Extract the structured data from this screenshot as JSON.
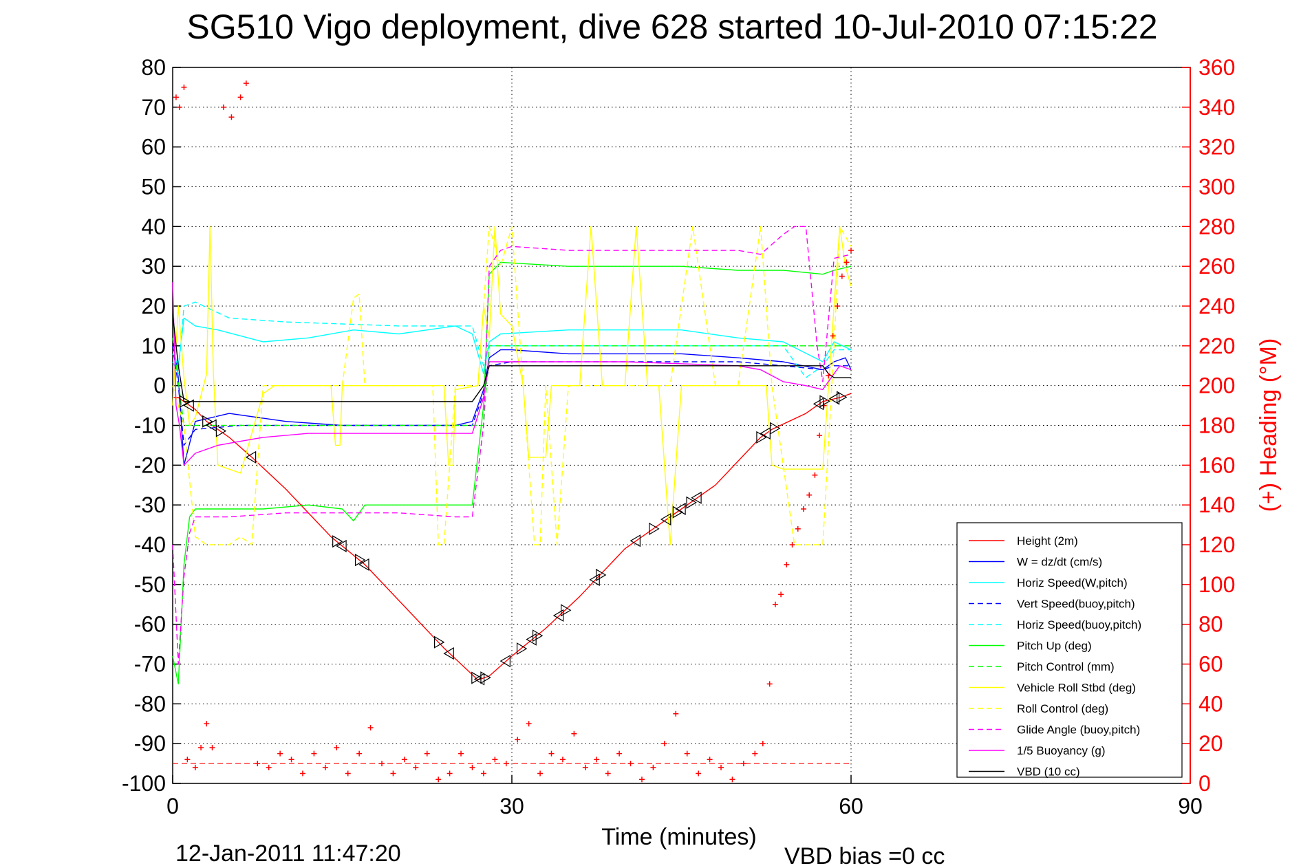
{
  "title": "SG510 Vigo deployment, dive 628 started 10-Jul-2010 07:15:22",
  "footer": {
    "timestamp": "12-Jan-2011 11:47:20",
    "vbd_bias": "VBD bias =0 cc"
  },
  "chart_data": {
    "type": "line",
    "title": "SG510 Vigo deployment, dive 628 started 10-Jul-2010 07:15:22",
    "xlabel": "Time (minutes)",
    "ylabel": "",
    "y2label": "(+) Heading (°M)",
    "xlim": [
      0,
      90
    ],
    "ylim": [
      -100,
      80
    ],
    "y2lim": [
      0,
      360
    ],
    "xticks": [
      0,
      30,
      60,
      90
    ],
    "yticks": [
      80,
      70,
      60,
      50,
      40,
      30,
      20,
      10,
      0,
      -10,
      -20,
      -30,
      -40,
      -50,
      -60,
      -70,
      -80,
      -90,
      -100
    ],
    "y2ticks": [
      360,
      340,
      320,
      300,
      280,
      260,
      240,
      220,
      200,
      180,
      160,
      140,
      120,
      100,
      80,
      60,
      40,
      20,
      0
    ],
    "grid": "dotted at x ticks",
    "legend_position": "bottom-right",
    "colors": {
      "height": "#ff0000",
      "w": "#0000ff",
      "horiz_w": "#00ffff",
      "vert_buoy": "#0000ff",
      "horiz_buoy": "#00ffff",
      "pitch": "#00ff00",
      "pitch_control": "#00ff00",
      "roll": "#ffff00",
      "roll_control": "#ffff00",
      "glide": "#ff00ff",
      "buoyancy": "#ff00ff",
      "vbd": "#000000",
      "heading": "#ff0000"
    },
    "series": [
      {
        "name": "Height (2m)",
        "style": "solid",
        "color": "#ff0000",
        "x": [
          0,
          0.5,
          1,
          1.5,
          2,
          3,
          4,
          5,
          7,
          10,
          14,
          17,
          20,
          24,
          27,
          28,
          30,
          33,
          36,
          40,
          44,
          48,
          52,
          53,
          56,
          57.5,
          59,
          60
        ],
        "y": [
          -3,
          -3,
          -4,
          -5,
          -6,
          -9,
          -11,
          -13,
          -18,
          -26,
          -38,
          -45,
          -54,
          -66,
          -74,
          -73,
          -68,
          -61,
          -53,
          -41,
          -33,
          -25,
          -13,
          -11,
          -7,
          -4,
          -3,
          -2
        ]
      },
      {
        "name": "W = dz/dt (cm/s)",
        "style": "solid",
        "color": "#0000ff",
        "x": [
          0,
          0.5,
          1,
          2,
          5,
          10,
          15,
          20,
          25,
          26.5,
          27.5,
          28,
          29,
          30,
          35,
          40,
          45,
          50,
          54,
          57.5,
          58.5,
          59.5,
          60
        ],
        "y": [
          12,
          2,
          -20,
          -9,
          -7,
          -9,
          -10,
          -10,
          -10,
          -9,
          -1,
          7,
          9,
          9,
          8,
          8,
          8,
          7,
          6,
          4,
          6,
          7,
          4
        ]
      },
      {
        "name": "Horiz Speed(W,pitch)",
        "style": "solid",
        "color": "#00ffff",
        "x": [
          0,
          0.5,
          1,
          2,
          4,
          8,
          12,
          16,
          20,
          25,
          26.5,
          27.5,
          28,
          29,
          35,
          40,
          45,
          50,
          54,
          57.5,
          58.5,
          60
        ],
        "y": [
          8,
          5,
          17,
          15,
          14,
          11,
          12,
          14,
          13,
          15,
          13,
          3,
          11,
          13,
          14,
          14,
          14,
          12,
          11,
          6,
          11,
          9
        ]
      },
      {
        "name": "Vert Speed(buoy,pitch)",
        "style": "dashed",
        "color": "#0000ff",
        "x": [
          0,
          0.5,
          1,
          2,
          6,
          12,
          18,
          25,
          26.5,
          27.5,
          28,
          30,
          40,
          50,
          54,
          57.5,
          58.5,
          60
        ],
        "y": [
          10,
          0,
          -15,
          -11,
          -10,
          -10,
          -10,
          -10,
          -10,
          -2,
          5,
          6,
          6,
          6,
          5,
          4,
          5,
          5
        ]
      },
      {
        "name": "Horiz Speed(buoy,pitch)",
        "style": "dashed",
        "color": "#00ffff",
        "x": [
          0,
          0.5,
          1,
          2,
          5,
          10,
          20,
          26.5,
          27.5,
          28,
          30,
          40,
          50,
          54,
          56,
          57.5,
          58.5,
          60
        ],
        "y": [
          6,
          3,
          20,
          21,
          17,
          16,
          15,
          15,
          5,
          10,
          10,
          10,
          10,
          10,
          2,
          5,
          9,
          9
        ]
      },
      {
        "name": "Pitch Up (deg)",
        "style": "solid",
        "color": "#00ff00",
        "x": [
          0,
          0.5,
          1,
          1.5,
          2,
          5,
          8,
          12,
          15,
          16,
          17,
          20,
          25,
          26.5,
          27.5,
          28,
          29,
          35,
          40,
          45,
          50,
          54,
          57.5,
          58.5,
          60
        ],
        "y": [
          -68,
          -75,
          -45,
          -33,
          -31,
          -31,
          -31,
          -30,
          -31,
          -34,
          -30,
          -30,
          -30,
          -30,
          -5,
          28,
          31,
          30,
          30,
          30,
          29,
          29,
          28,
          29,
          30
        ]
      },
      {
        "name": "Pitch Control (mm)",
        "style": "dashed",
        "color": "#00ff00",
        "x": [
          0,
          1,
          2,
          10,
          20,
          26.5,
          27.5,
          28,
          30,
          40,
          50,
          54,
          57.5,
          58.5,
          60
        ],
        "y": [
          12,
          -10,
          -10,
          -10,
          -10,
          -10,
          -10,
          10,
          10,
          10,
          10,
          10,
          10,
          10,
          10
        ]
      },
      {
        "name": "Vehicle Roll Stbd (deg)",
        "style": "solid",
        "color": "#ffff00",
        "x": [
          0,
          0.5,
          1,
          1.5,
          2,
          3,
          3.3,
          3.6,
          4,
          6,
          8,
          9,
          14,
          14.4,
          14.8,
          15,
          24,
          24.4,
          24.8,
          25,
          27,
          27.5,
          28,
          28.5,
          29,
          30,
          31,
          31.5,
          33,
          33.5,
          34,
          35,
          36,
          37,
          38,
          40,
          41,
          42,
          43,
          44,
          45,
          46,
          48,
          50,
          52,
          52.5,
          53,
          54,
          55,
          56,
          57.5,
          58.5,
          59,
          59.5,
          60
        ],
        "y": [
          -5,
          20,
          2,
          -10,
          -8,
          3,
          40,
          3,
          -20,
          -22,
          -2,
          0,
          0,
          -15,
          -15,
          0,
          0,
          -20,
          -20,
          -1,
          0,
          20,
          12,
          40,
          18,
          15,
          0,
          -18,
          -18,
          0,
          0,
          0,
          0,
          40,
          0,
          0,
          40,
          0,
          0,
          -40,
          0,
          0,
          0,
          0,
          0,
          0,
          -20,
          -21,
          -21,
          -21,
          -21,
          20,
          40,
          30,
          25
        ]
      },
      {
        "name": "Roll Control (deg)",
        "style": "dashed",
        "color": "#ffff00",
        "x": [
          0,
          1,
          2,
          3,
          4,
          5,
          6,
          7,
          8,
          12,
          15,
          16,
          16.5,
          17,
          20,
          23,
          23.5,
          24,
          25,
          27,
          28,
          29,
          30,
          31,
          32,
          32.5,
          33,
          34,
          35,
          37,
          38,
          40,
          42,
          44,
          46,
          48,
          50,
          52,
          53,
          55,
          57,
          57.5,
          58.5,
          59,
          60
        ],
        "y": [
          0,
          -10,
          -38,
          -40,
          -40,
          -40,
          -38,
          -40,
          0,
          0,
          0,
          22,
          23,
          0,
          0,
          0,
          -40,
          -40,
          0,
          0,
          40,
          30,
          40,
          0,
          -40,
          -40,
          0,
          -40,
          0,
          0,
          0,
          0,
          0,
          0,
          40,
          0,
          0,
          40,
          0,
          -40,
          -40,
          -40,
          10,
          40,
          35
        ]
      },
      {
        "name": "Glide Angle (buoy,pitch)",
        "style": "dashed",
        "color": "#ff00ff",
        "x": [
          0,
          0.5,
          1,
          1.5,
          2,
          5,
          10,
          15,
          20,
          25,
          26.5,
          27.5,
          28,
          29,
          30,
          35,
          40,
          45,
          50,
          52,
          54,
          55,
          56,
          57,
          57.5,
          58.5,
          60
        ],
        "y": [
          -40,
          -70,
          -48,
          -37,
          -33,
          -33,
          -32,
          -32,
          -32,
          -33,
          -33,
          -10,
          30,
          34,
          35,
          34,
          34,
          34,
          34,
          33,
          38,
          40,
          40,
          10,
          1,
          32,
          33
        ]
      },
      {
        "name": "1/5 Buoyancy (g)",
        "style": "solid",
        "color": "#ff00ff",
        "x": [
          0,
          0.3,
          0.6,
          1,
          2,
          4,
          6,
          8,
          12,
          18,
          24,
          26.5,
          27.5,
          28,
          30,
          40,
          50,
          52,
          54,
          56,
          57.5,
          58.5,
          59,
          60
        ],
        "y": [
          26,
          -5,
          -10,
          -20,
          -17,
          -15,
          -14,
          -13,
          -12,
          -12,
          -12,
          -12,
          -3,
          6,
          6,
          6,
          5,
          4,
          1,
          0,
          -1,
          3,
          5,
          4
        ]
      },
      {
        "name": "VBD (10 cc)",
        "style": "solid",
        "color": "#000000",
        "x": [
          0,
          0.5,
          1,
          2,
          26.5,
          27.5,
          28,
          30,
          57.5,
          58,
          58.5,
          60
        ],
        "y": [
          18,
          5,
          -4,
          -4,
          -4,
          0,
          5,
          5,
          5,
          3,
          2,
          2
        ]
      },
      {
        "name": "(+) Heading (°M)",
        "style": "markers",
        "axis": "right",
        "color": "#ff0000",
        "x": [
          0.3,
          0.6,
          1,
          1.3,
          2,
          2.5,
          3,
          3.5,
          4.5,
          5.2,
          6,
          6.5,
          7.5,
          8.5,
          9.5,
          10.5,
          11.5,
          12.5,
          13.5,
          14.5,
          15.5,
          16.5,
          17.5,
          18.5,
          19.5,
          20.5,
          21.5,
          22.5,
          23.5,
          24.5,
          25.5,
          26.5,
          27.5,
          28.5,
          29.5,
          30.5,
          31.5,
          32.5,
          33.5,
          34.5,
          35.5,
          36.5,
          37.5,
          38.5,
          39.5,
          40.5,
          41.5,
          42.5,
          43.5,
          44.5,
          45.5,
          46.5,
          47.5,
          48.5,
          49.5,
          50.5,
          51.5,
          52.2,
          52.8,
          53.3,
          53.8,
          54.3,
          54.8,
          55.3,
          55.8,
          56.3,
          56.8,
          57.2,
          57.6,
          58,
          58.4,
          58.8,
          59.2,
          59.6,
          60
        ],
        "y": [
          345,
          340,
          350,
          12,
          8,
          18,
          30,
          18,
          340,
          335,
          345,
          352,
          10,
          8,
          15,
          12,
          5,
          15,
          8,
          18,
          5,
          15,
          28,
          10,
          5,
          12,
          8,
          15,
          2,
          5,
          15,
          8,
          5,
          12,
          10,
          22,
          30,
          5,
          15,
          12,
          25,
          8,
          12,
          5,
          15,
          10,
          2,
          8,
          20,
          35,
          15,
          5,
          12,
          8,
          2,
          10,
          15,
          20,
          50,
          90,
          95,
          110,
          120,
          128,
          138,
          145,
          155,
          175,
          190,
          205,
          225,
          240,
          255,
          262,
          268
        ]
      }
    ]
  }
}
